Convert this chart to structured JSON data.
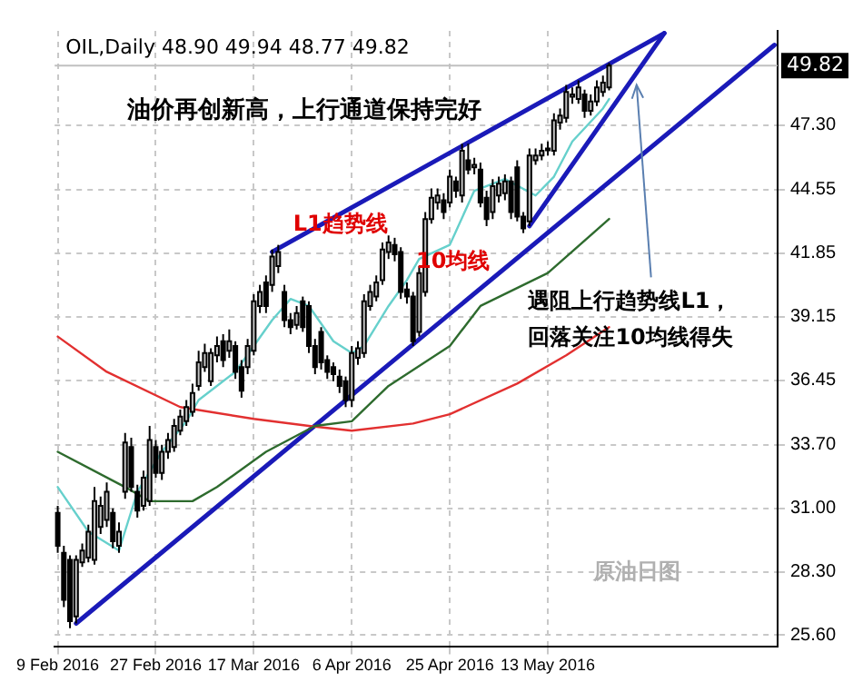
{
  "chart_data": {
    "type": "candlestick",
    "title": "OIL,Daily 48.90 49.94 48.77 49.82",
    "categories": [
      "9 Feb 2016",
      null,
      null,
      null,
      null,
      null,
      null,
      null,
      null,
      null,
      null,
      null,
      null,
      null,
      null,
      null,
      "27 Feb 2016",
      null,
      null,
      null,
      null,
      null,
      null,
      null,
      null,
      null,
      null,
      null,
      null,
      null,
      null,
      null,
      "17 Mar 2016",
      null,
      null,
      null,
      null,
      null,
      null,
      null,
      null,
      null,
      null,
      null,
      null,
      null,
      null,
      null,
      "6 Apr 2016",
      null,
      null,
      null,
      null,
      null,
      null,
      null,
      null,
      null,
      null,
      null,
      null,
      null,
      null,
      null,
      "25 Apr 2016",
      null,
      null,
      null,
      null,
      null,
      null,
      null,
      null,
      null,
      null,
      null,
      null,
      null,
      null,
      null,
      "13 May 2016",
      null,
      null,
      null,
      null,
      null,
      null,
      null,
      null,
      null,
      null,
      null,
      null,
      null,
      null,
      null,
      null,
      null,
      null,
      null,
      null,
      null,
      null,
      null,
      null,
      null,
      null,
      null,
      null,
      null,
      null,
      null,
      null,
      null,
      null,
      null,
      null,
      null
    ],
    "color": "#000000",
    "colors": [
      "#000000",
      "#000000",
      "#000000",
      "#c0c0c0",
      "#c0c0c0",
      "#c0c0c0",
      "#c0c0c0",
      "#c0c0c0",
      "#c0c0c0",
      "#000000",
      "#c0c0c0",
      "#c0c0c0",
      "#000000",
      "#000000",
      "#c0c0c0",
      "#c0c0c0",
      "#000000",
      "#c0c0c0",
      "#c0c0c0",
      "#c0c0c0",
      "#c0c0c0",
      "#c0c0c0",
      "#c0c0c0",
      "#c0c0c0",
      "#c0c0c0",
      "#c0c0c0",
      "#c0c0c0",
      "#000000",
      "#c0c0c0",
      "#000000",
      "#000000",
      "#c0c0c0",
      "#c0c0c0",
      "#c0c0c0",
      "#000000",
      "#c0c0c0",
      "#c0c0c0",
      "#000000",
      "#000000",
      "#c0c0c0",
      "#000000",
      "#000000",
      "#000000",
      "#000000",
      "#000000",
      "#000000",
      "#000000",
      "#000000",
      "#c0c0c0",
      "#c0c0c0",
      "#c0c0c0",
      "#c0c0c0",
      "#c0c0c0",
      "#c0c0c0",
      "#c0c0c0",
      "#000000",
      "#000000",
      "#000000",
      "#000000",
      "#c0c0c0",
      "#c0c0c0",
      "#c0c0c0",
      "#c0c0c0",
      "#000000",
      "#c0c0c0",
      "#000000",
      "#c0c0c0",
      "#000000",
      "#c0c0c0",
      "#000000",
      "#000000",
      "#c0c0c0",
      "#c0c0c0",
      "#c0c0c0",
      "#000000",
      "#000000",
      "#000000",
      "#c0c0c0",
      "#c0c0c0",
      "#c0c0c0",
      "#c0c0c0",
      "#c0c0c0",
      "#c0c0c0",
      "#c0c0c0",
      "#c0c0c0",
      "#c0c0c0",
      "#000000",
      "#c0c0c0",
      "#c0c0c0",
      "#c0c0c0",
      "#c0c0c0",
      null,
      null,
      null,
      null,
      null,
      null,
      null,
      null,
      null,
      null,
      null,
      null,
      null,
      null,
      null,
      null,
      null,
      null,
      null,
      null,
      null,
      null,
      null,
      null,
      null,
      null,
      null
    ],
    "ohlc": [
      [
        30.8,
        31.1,
        29.1,
        29.4
      ],
      [
        29.1,
        29.4,
        26.8,
        27.1
      ],
      [
        28.8,
        29.0,
        25.9,
        26.2
      ],
      [
        26.4,
        29.0,
        26.1,
        28.8
      ],
      [
        28.7,
        29.5,
        28.5,
        29.2
      ],
      [
        28.9,
        30.3,
        28.7,
        30.0
      ],
      [
        28.8,
        31.9,
        28.6,
        31.3
      ],
      [
        30.2,
        31.5,
        29.9,
        31.1
      ],
      [
        30.5,
        32.1,
        30.2,
        31.7
      ],
      [
        30.8,
        31.0,
        29.3,
        29.6
      ],
      [
        29.4,
        30.4,
        29.1,
        30.0
      ],
      [
        31.7,
        34.2,
        31.4,
        33.8
      ],
      [
        33.6,
        34.0,
        31.7,
        31.9
      ],
      [
        31.7,
        32.0,
        30.6,
        30.9
      ],
      [
        31.1,
        32.6,
        30.9,
        32.3
      ],
      [
        31.3,
        34.5,
        31.1,
        33.9
      ],
      [
        33.6,
        33.9,
        32.3,
        32.5
      ],
      [
        32.5,
        33.7,
        32.2,
        33.4
      ],
      [
        33.4,
        34.2,
        33.1,
        33.9
      ],
      [
        33.6,
        34.8,
        33.4,
        34.5
      ],
      [
        34.3,
        35.2,
        34.1,
        34.9
      ],
      [
        34.7,
        35.6,
        34.5,
        35.3
      ],
      [
        35.1,
        36.3,
        34.9,
        35.9
      ],
      [
        36.2,
        37.7,
        36.0,
        37.2
      ],
      [
        37.0,
        38.0,
        36.8,
        37.6
      ],
      [
        36.4,
        37.8,
        36.2,
        37.6
      ],
      [
        37.5,
        38.3,
        37.2,
        37.9
      ],
      [
        38.1,
        38.4,
        37.0,
        37.3
      ],
      [
        37.7,
        38.6,
        37.4,
        38.1
      ],
      [
        37.9,
        38.1,
        36.5,
        36.8
      ],
      [
        37.0,
        37.3,
        35.7,
        36.0
      ],
      [
        37.0,
        38.2,
        36.7,
        37.9
      ],
      [
        37.7,
        40.1,
        37.5,
        39.8
      ],
      [
        39.6,
        40.5,
        39.3,
        40.2
      ],
      [
        40.6,
        40.9,
        39.3,
        39.6
      ],
      [
        40.5,
        42.0,
        40.2,
        41.7
      ],
      [
        41.3,
        42.2,
        41.0,
        41.9
      ],
      [
        40.2,
        40.5,
        38.7,
        39.0
      ],
      [
        39.0,
        39.3,
        38.4,
        38.7
      ],
      [
        38.8,
        39.6,
        38.6,
        39.3
      ],
      [
        39.8,
        40.0,
        38.5,
        38.7
      ],
      [
        39.6,
        39.8,
        37.6,
        37.9
      ],
      [
        37.9,
        38.2,
        36.7,
        37.0
      ],
      [
        38.5,
        38.7,
        36.9,
        37.2
      ],
      [
        37.3,
        37.5,
        36.5,
        36.8
      ],
      [
        37.0,
        37.2,
        36.4,
        36.7
      ],
      [
        36.6,
        36.9,
        35.9,
        36.2
      ],
      [
        36.4,
        36.6,
        35.3,
        35.6
      ],
      [
        35.6,
        37.9,
        35.3,
        37.6
      ],
      [
        37.4,
        38.1,
        37.1,
        37.8
      ],
      [
        37.6,
        40.1,
        37.4,
        39.8
      ],
      [
        39.6,
        40.5,
        39.4,
        40.2
      ],
      [
        40.0,
        40.9,
        39.8,
        40.6
      ],
      [
        40.7,
        42.3,
        40.5,
        42.0
      ],
      [
        41.9,
        42.6,
        41.6,
        42.3
      ],
      [
        42.2,
        42.5,
        41.5,
        41.8
      ],
      [
        41.9,
        42.1,
        39.9,
        40.2
      ],
      [
        40.3,
        40.6,
        39.7,
        40.0
      ],
      [
        40.0,
        40.2,
        37.9,
        38.1
      ],
      [
        38.5,
        41.3,
        38.3,
        41.0
      ],
      [
        40.2,
        43.6,
        40.0,
        43.3
      ],
      [
        43.3,
        44.6,
        43.1,
        44.2
      ],
      [
        44.0,
        44.6,
        43.7,
        44.3
      ],
      [
        44.1,
        44.4,
        43.3,
        43.6
      ],
      [
        44.0,
        45.4,
        43.8,
        45.1
      ],
      [
        44.9,
        45.1,
        44.2,
        44.5
      ],
      [
        44.3,
        46.5,
        44.0,
        46.2
      ],
      [
        45.8,
        46.5,
        45.2,
        45.4
      ],
      [
        45.5,
        45.9,
        45.2,
        45.6
      ],
      [
        45.4,
        45.7,
        43.8,
        44.0
      ],
      [
        44.2,
        44.5,
        43.0,
        43.3
      ],
      [
        43.6,
        45.0,
        43.3,
        44.7
      ],
      [
        44.3,
        45.1,
        44.0,
        44.8
      ],
      [
        44.4,
        45.2,
        44.1,
        44.9
      ],
      [
        44.9,
        45.1,
        43.3,
        43.6
      ],
      [
        45.5,
        45.8,
        43.2,
        43.4
      ],
      [
        43.4,
        43.6,
        42.7,
        42.9
      ],
      [
        43.2,
        46.3,
        43.0,
        46.0
      ],
      [
        45.8,
        46.3,
        45.6,
        46.0
      ],
      [
        46.0,
        46.5,
        45.8,
        46.2
      ],
      [
        46.3,
        46.6,
        46.0,
        46.3
      ],
      [
        46.2,
        47.8,
        46.0,
        47.5
      ],
      [
        47.4,
        48.0,
        47.1,
        47.7
      ],
      [
        47.6,
        49.0,
        47.4,
        48.7
      ],
      [
        48.5,
        48.9,
        48.2,
        48.6
      ],
      [
        48.4,
        49.2,
        48.2,
        48.9
      ],
      [
        48.6,
        48.8,
        47.6,
        47.9
      ],
      [
        47.9,
        48.6,
        47.7,
        48.3
      ],
      [
        48.3,
        49.2,
        48.1,
        48.9
      ],
      [
        48.7,
        49.4,
        48.5,
        49.1
      ],
      [
        48.9,
        49.94,
        48.77,
        49.82
      ],
      null,
      null,
      null,
      null,
      null,
      null,
      null,
      null,
      null,
      null,
      null,
      null,
      null,
      null,
      null,
      null,
      null,
      null,
      null,
      null,
      null,
      null,
      null,
      null,
      null,
      null,
      null
    ],
    "series": [
      {
        "type": "line",
        "color": "#66d0cc",
        "values": [
          31.9,
          null,
          null,
          null,
          null,
          30.0,
          null,
          null,
          null,
          null,
          29.2,
          null,
          null,
          31.7,
          null,
          null,
          null,
          33.4,
          null,
          null,
          null,
          34.7,
          null,
          35.6,
          null,
          null,
          null,
          null,
          null,
          36.8,
          null,
          null,
          37.9,
          null,
          null,
          39.0,
          null,
          null,
          39.9,
          null,
          null,
          39.6,
          null,
          null,
          null,
          38.1,
          null,
          null,
          37.6,
          null,
          37.9,
          null,
          null,
          null,
          39.6,
          null,
          null,
          40.7,
          null,
          41.6,
          null,
          null,
          null,
          null,
          42.2,
          null,
          null,
          null,
          44.5,
          null,
          null,
          null,
          null,
          45.0,
          null,
          null,
          null,
          null,
          44.3,
          null,
          null,
          45.1,
          null,
          null,
          46.6,
          null,
          null,
          null,
          null,
          48.0,
          48.4,
          null,
          null,
          null,
          null,
          null,
          null,
          null,
          null,
          null,
          null,
          null,
          null,
          null,
          null,
          null,
          null,
          null,
          null,
          null,
          null,
          null,
          null,
          null,
          null,
          null,
          null,
          null
        ]
      },
      {
        "type": "line",
        "color": "#2e6b2e",
        "values": [
          33.4,
          null,
          null,
          null,
          null,
          null,
          null,
          null,
          null,
          null,
          null,
          31.9,
          null,
          null,
          null,
          31.3,
          null,
          null,
          null,
          null,
          null,
          null,
          31.3,
          null,
          null,
          null,
          31.9,
          null,
          null,
          null,
          null,
          null,
          null,
          null,
          33.4,
          null,
          null,
          null,
          null,
          null,
          null,
          null,
          34.5,
          null,
          null,
          null,
          null,
          null,
          34.7,
          null,
          null,
          null,
          null,
          null,
          36.2,
          null,
          null,
          null,
          null,
          null,
          null,
          null,
          null,
          null,
          37.9,
          null,
          null,
          null,
          null,
          39.6,
          null,
          null,
          null,
          null,
          null,
          null,
          null,
          null,
          null,
          null,
          41.0,
          null,
          null,
          null,
          null,
          null,
          null,
          null,
          null,
          null,
          43.3,
          null,
          null,
          null,
          null,
          null,
          null,
          null,
          null,
          null,
          null,
          null,
          null,
          null,
          null,
          null,
          null,
          null,
          null,
          null,
          null,
          null,
          null,
          null,
          null,
          null,
          null,
          null
        ]
      },
      {
        "type": "line",
        "color": "#e23030",
        "values": [
          38.3,
          null,
          null,
          null,
          null,
          null,
          null,
          null,
          36.8,
          null,
          null,
          null,
          null,
          null,
          null,
          null,
          null,
          null,
          null,
          null,
          35.3,
          null,
          null,
          null,
          null,
          null,
          null,
          null,
          null,
          null,
          null,
          null,
          34.8,
          null,
          null,
          null,
          null,
          null,
          null,
          null,
          null,
          34.5,
          null,
          null,
          null,
          null,
          null,
          null,
          34.3,
          null,
          null,
          null,
          null,
          null,
          null,
          null,
          null,
          null,
          34.6,
          null,
          null,
          null,
          null,
          null,
          35.0,
          null,
          null,
          null,
          null,
          null,
          null,
          null,
          null,
          null,
          null,
          36.3,
          null,
          null,
          null,
          null,
          null,
          null,
          null,
          37.5,
          null,
          null,
          null,
          null,
          null,
          null,
          38.7,
          null,
          null,
          null,
          null,
          null,
          null,
          null,
          null,
          null,
          null,
          null,
          null,
          null,
          null,
          null,
          null,
          null,
          null,
          null,
          null,
          null,
          null,
          null,
          null,
          null,
          null,
          null
        ]
      },
      {
        "type": "line",
        "color": "#1a1ab8",
        "values": [
          null,
          null,
          null,
          26.1,
          null,
          null,
          null,
          null,
          null,
          null,
          null,
          null,
          null,
          null,
          null,
          null,
          null,
          null,
          null,
          null,
          null,
          null,
          null,
          null,
          null,
          null,
          null,
          null,
          null,
          null,
          null,
          null,
          null,
          null,
          null,
          null,
          null,
          null,
          null,
          null,
          null,
          null,
          null,
          null,
          null,
          null,
          null,
          null,
          null,
          null,
          null,
          null,
          null,
          null,
          null,
          null,
          null,
          null,
          null,
          null,
          null,
          null,
          null,
          null,
          null,
          null,
          null,
          null,
          null,
          null,
          null,
          null,
          null,
          null,
          null,
          null,
          null,
          null,
          null,
          null,
          null,
          null,
          null,
          null,
          null,
          null,
          null,
          null,
          null,
          null,
          null,
          null,
          null,
          null,
          null,
          null,
          null,
          null,
          null,
          null,
          null,
          null,
          null,
          null,
          null,
          null,
          null,
          null,
          null,
          null,
          null,
          null,
          null,
          null,
          null,
          null,
          null,
          50.7
        ]
      },
      {
        "type": "line",
        "color": "#1a1ab8",
        "values": [
          null,
          null,
          null,
          null,
          null,
          null,
          null,
          null,
          null,
          null,
          null,
          null,
          null,
          null,
          null,
          null,
          null,
          null,
          null,
          null,
          null,
          null,
          null,
          null,
          null,
          null,
          null,
          null,
          null,
          null,
          null,
          null,
          null,
          null,
          null,
          41.9,
          null,
          null,
          null,
          null,
          null,
          null,
          null,
          null,
          null,
          null,
          null,
          null,
          null,
          null,
          null,
          null,
          null,
          null,
          null,
          null,
          null,
          null,
          null,
          null,
          null,
          null,
          null,
          null,
          null,
          null,
          null,
          null,
          null,
          null,
          null,
          null,
          null,
          null,
          null,
          null,
          null,
          null,
          null,
          null,
          null,
          null,
          null,
          null,
          null,
          null,
          null,
          null,
          null,
          null,
          null,
          null,
          null,
          null,
          null,
          null,
          null,
          null,
          null,
          51.2,
          null,
          null,
          null,
          null,
          null,
          null,
          null,
          null,
          null,
          null,
          null,
          null,
          null,
          null,
          null,
          null,
          null,
          null
        ]
      },
      {
        "type": "line",
        "color": "#1a1ab8",
        "values": [
          null,
          null,
          null,
          null,
          null,
          null,
          null,
          null,
          null,
          null,
          null,
          null,
          null,
          null,
          null,
          null,
          null,
          null,
          null,
          null,
          null,
          null,
          null,
          null,
          null,
          null,
          null,
          null,
          null,
          null,
          null,
          null,
          null,
          null,
          null,
          null,
          null,
          null,
          null,
          null,
          null,
          null,
          null,
          null,
          null,
          null,
          null,
          null,
          null,
          null,
          null,
          null,
          null,
          null,
          null,
          null,
          null,
          null,
          null,
          null,
          null,
          null,
          null,
          null,
          null,
          null,
          null,
          null,
          null,
          null,
          null,
          null,
          null,
          null,
          null,
          null,
          null,
          43.0,
          null,
          null,
          null,
          null,
          null,
          null,
          null,
          null,
          null,
          null,
          null,
          null,
          null,
          null,
          null,
          null,
          null,
          null,
          null,
          null,
          null,
          51.2,
          null,
          null,
          null,
          null,
          null,
          null,
          null,
          null,
          null,
          null,
          null,
          null,
          null,
          null,
          null,
          null,
          null,
          null
        ]
      }
    ],
    "ylim": [
      25.1,
      51.3
    ],
    "yticks": [
      {
        "value": 25.6,
        "label": "25.60"
      },
      {
        "value": 28.3,
        "label": "28.30"
      },
      {
        "value": 31.0,
        "label": "31.00"
      },
      {
        "value": 33.7,
        "label": "33.70"
      },
      {
        "value": 36.45,
        "label": "36.45"
      },
      {
        "value": 39.15,
        "label": "39.15"
      },
      {
        "value": 41.85,
        "label": "41.85"
      },
      {
        "value": 44.55,
        "label": "44.55"
      },
      {
        "value": 47.3,
        "label": "47.30"
      }
    ],
    "ref_lines": [
      {
        "axis": "y",
        "value": 49.82,
        "label": "49.82",
        "color": "#c0c0c0"
      }
    ],
    "grid": true,
    "annotations": [
      "油价再创新高，上行通道保持完好",
      "L1趋势线",
      "10均线",
      {
        "text": "遇阻上行趋势线L1，",
        "y": 49.0
      },
      "回落关注10均线得失",
      "原油日图"
    ]
  }
}
